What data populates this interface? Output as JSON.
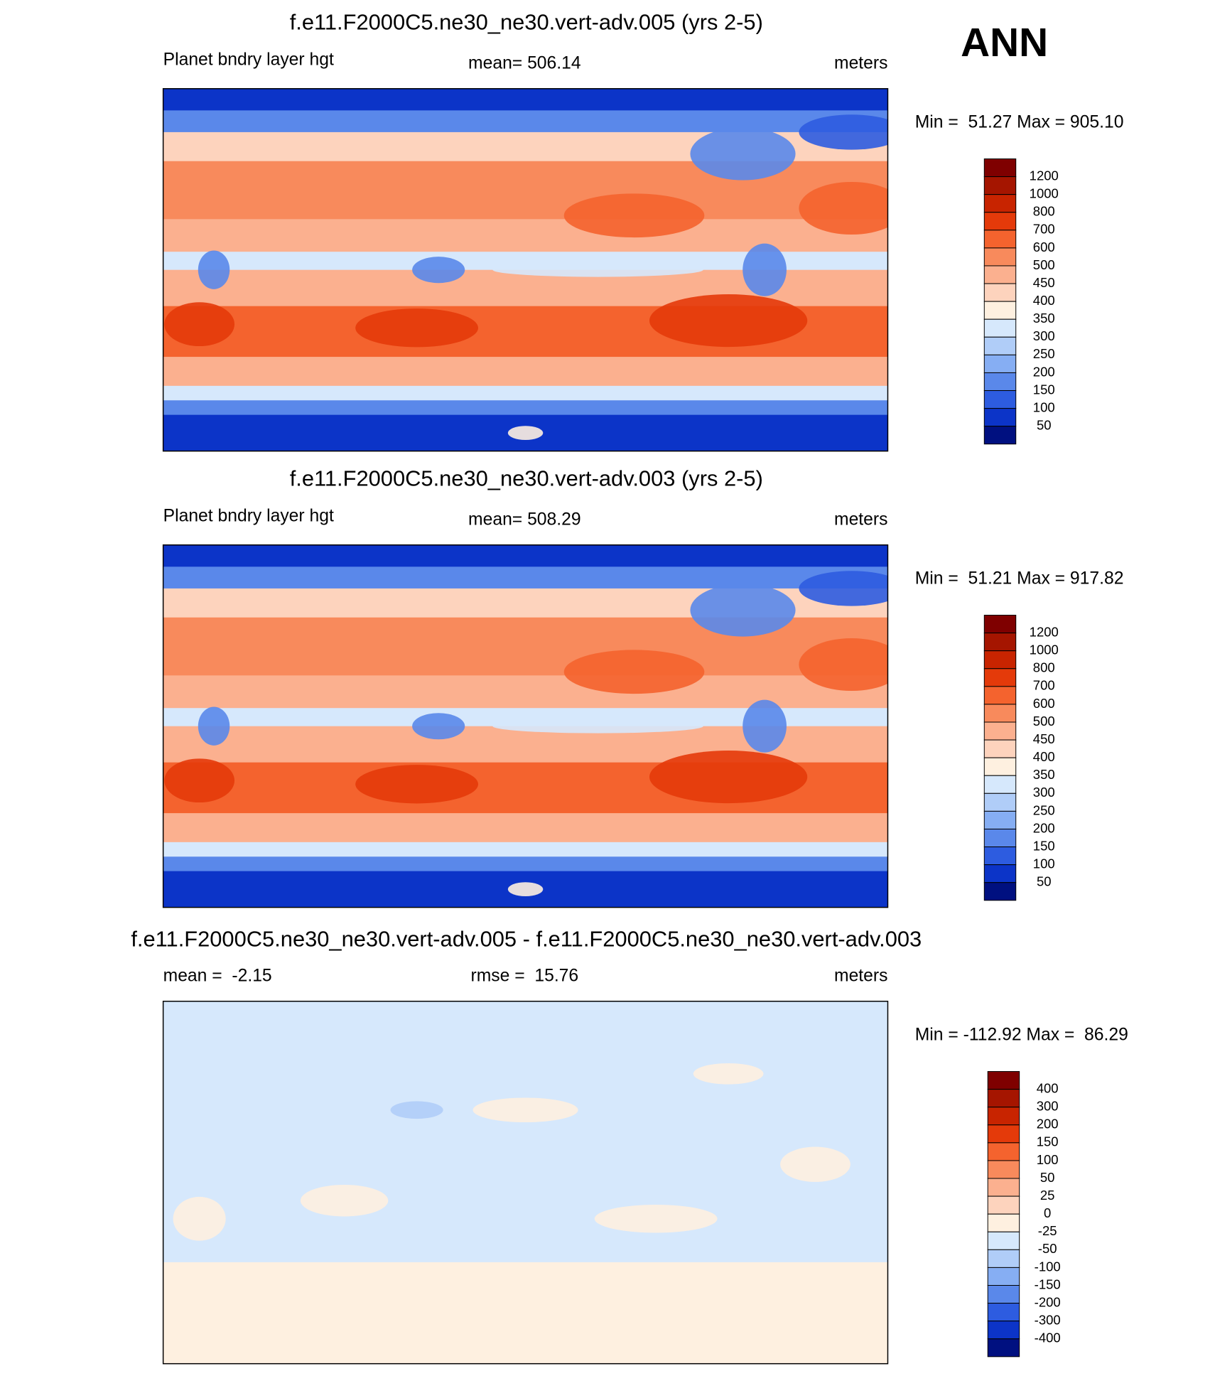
{
  "season": "ANN",
  "panels": [
    {
      "title": "f.e11.F2000C5.ne30_ne30.vert-adv.005 (yrs 2-5)",
      "left_label": "Planet bndry layer hgt",
      "center_label": "mean= 506.14",
      "right_label": "meters",
      "minmax": "Min =  51.27 Max = 905.10",
      "colorbar": {
        "levels": [
          1200,
          1000,
          800,
          700,
          600,
          500,
          450,
          400,
          350,
          300,
          250,
          200,
          150,
          100,
          50
        ],
        "colors": [
          "#7f0000",
          "#a51500",
          "#c82400",
          "#e43a0a",
          "#f4632e",
          "#f88a5c",
          "#fbb08f",
          "#fdd3bd",
          "#fef0e0",
          "#d6e8fc",
          "#b0cdf8",
          "#86aef3",
          "#5a88ea",
          "#2d5ce0",
          "#0c34c8",
          "#001080"
        ]
      }
    },
    {
      "title": "f.e11.F2000C5.ne30_ne30.vert-adv.003 (yrs 2-5)",
      "left_label": "Planet bndry layer hgt",
      "center_label": "mean= 508.29",
      "right_label": "meters",
      "minmax": "Min =  51.21 Max = 917.82",
      "colorbar": {
        "levels": [
          1200,
          1000,
          800,
          700,
          600,
          500,
          450,
          400,
          350,
          300,
          250,
          200,
          150,
          100,
          50
        ],
        "colors": [
          "#7f0000",
          "#a51500",
          "#c82400",
          "#e43a0a",
          "#f4632e",
          "#f88a5c",
          "#fbb08f",
          "#fdd3bd",
          "#fef0e0",
          "#d6e8fc",
          "#b0cdf8",
          "#86aef3",
          "#5a88ea",
          "#2d5ce0",
          "#0c34c8",
          "#001080"
        ]
      }
    },
    {
      "title": "f.e11.F2000C5.ne30_ne30.vert-adv.005 - f.e11.F2000C5.ne30_ne30.vert-adv.003",
      "left_label": "mean =  -2.15",
      "center_label": "rmse =  15.76",
      "right_label": "meters",
      "minmax": "Min = -112.92 Max =  86.29",
      "colorbar": {
        "levels": [
          400,
          300,
          200,
          150,
          100,
          50,
          25,
          0,
          -25,
          -50,
          -100,
          -150,
          -200,
          -300,
          -400
        ],
        "colors": [
          "#7f0000",
          "#a51500",
          "#c82400",
          "#e43a0a",
          "#f4632e",
          "#f88a5c",
          "#fbb08f",
          "#fdd3bd",
          "#fef0e0",
          "#d6e8fc",
          "#b0cdf8",
          "#86aef3",
          "#5a88ea",
          "#2d5ce0",
          "#0c34c8",
          "#001080"
        ]
      }
    }
  ]
}
